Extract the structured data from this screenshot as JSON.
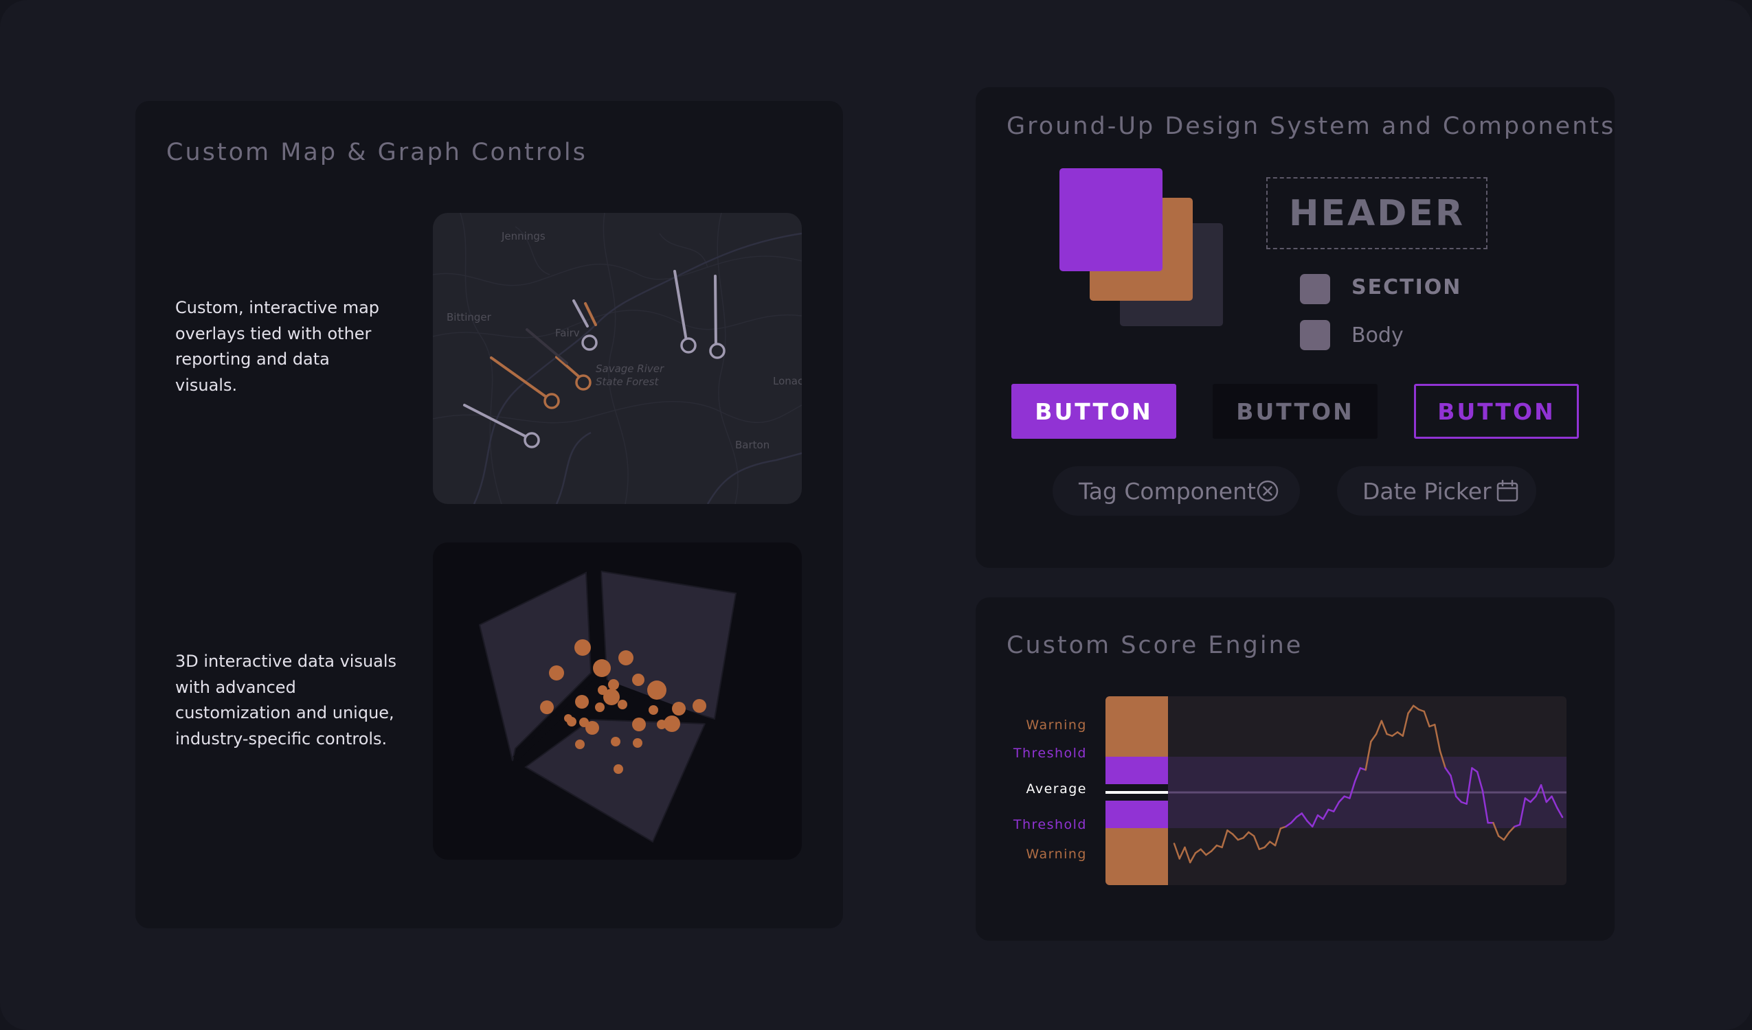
{
  "panels": {
    "map_graph": {
      "title": "Custom Map & Graph Controls",
      "map_description": "Custom, interactive map overlays tied with other reporting and data visuals.",
      "map_labels": [
        "Jennings",
        "Bittinger",
        "Fairv",
        "Savage River",
        "State Forest",
        "Lonac",
        "Barton"
      ],
      "visual_description": "3D interactive data visuals with advanced customization and unique, industry-specific controls."
    },
    "design_system": {
      "title": "Ground-Up Design System and Components",
      "header_label": "HEADER",
      "section_label": "SECTION",
      "body_label": "Body",
      "buttons": [
        "BUTTON",
        "BUTTON",
        "BUTTON"
      ],
      "tag_label": "Tag Component",
      "date_label": "Date Picker"
    },
    "score_engine": {
      "title": "Custom Score Engine",
      "labels": {
        "warning_top": "Warning",
        "threshold_top": "Threshold",
        "average": "Average",
        "threshold_bottom": "Threshold",
        "warning_bottom": "Warning"
      }
    }
  },
  "colors": {
    "purple": "#9133d4",
    "orange": "#b06d44",
    "slate": "#2c2a38",
    "chip": "#6e6479",
    "bg": "#181922",
    "panel": "#12131a"
  },
  "icons": [
    "close-circle-icon",
    "calendar-icon"
  ],
  "chart_data": {
    "type": "line",
    "title": "",
    "bands": [
      "Warning",
      "Threshold",
      "Average",
      "Threshold",
      "Warning"
    ],
    "values": [
      0.22,
      0.14,
      0.2,
      0.12,
      0.17,
      0.19,
      0.16,
      0.18,
      0.21,
      0.2,
      0.29,
      0.27,
      0.24,
      0.25,
      0.28,
      0.26,
      0.19,
      0.2,
      0.23,
      0.21,
      0.3,
      0.31,
      0.33,
      0.36,
      0.38,
      0.34,
      0.31,
      0.37,
      0.35,
      0.4,
      0.39,
      0.44,
      0.47,
      0.46,
      0.55,
      0.62,
      0.61,
      0.76,
      0.8,
      0.87,
      0.8,
      0.79,
      0.81,
      0.79,
      0.91,
      0.95,
      0.93,
      0.92,
      0.84,
      0.85,
      0.71,
      0.62,
      0.58,
      0.47,
      0.44,
      0.43,
      0.62,
      0.6,
      0.5,
      0.33,
      0.33,
      0.26,
      0.24,
      0.28,
      0.31,
      0.32,
      0.46,
      0.44,
      0.47,
      0.53,
      0.44,
      0.47,
      0.41,
      0.36
    ]
  }
}
